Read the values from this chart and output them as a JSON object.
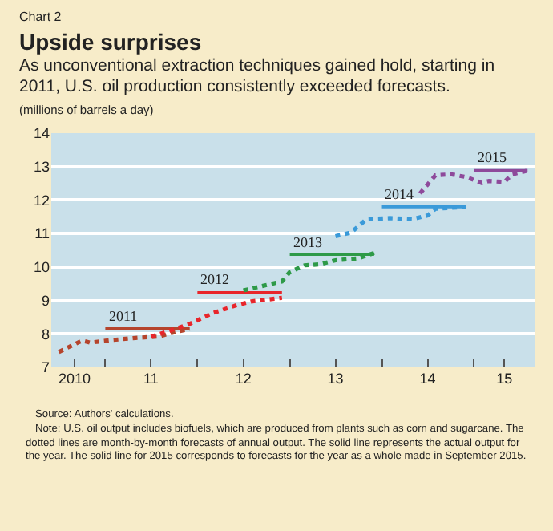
{
  "chart_data": {
    "type": "line",
    "title": "Upside surprises",
    "subtitle": "As unconventional extraction techniques gained hold, starting in 2011, U.S. oil production consistently exceeded forecasts.",
    "ylabel": "(millions of barrels a day)",
    "annotations": [
      "Chart 2",
      "Source: Authors' calculations.",
      "Note: U.S. oil output includes biofuels, which are produced from plants such as corn and sugarcane. The dotted lines are month-by-month forecasts of annual output. The solid line represents the actual output for the year. The solid line for 2015 corresponds to forecasts for the year as a whole made in September 2015."
    ],
    "series": [
      {
        "color": "#b5442c",
        "line_style": "dotted",
        "x": [
          "2010-07",
          "2010-10",
          "2010-11",
          "2011-02",
          "2011-05",
          "2011-08",
          "2011-10",
          "2011-12"
        ],
        "values": [
          7.46,
          7.8,
          7.74,
          7.82,
          7.88,
          7.92,
          8.05,
          8.15
        ]
      },
      {
        "name": "2011",
        "color": "#b5442c",
        "line_style": "solid",
        "x": [
          "2011-01",
          "2011-12"
        ],
        "values": [
          8.15,
          8.15
        ]
      },
      {
        "color": "#e8262b",
        "line_style": "dotted",
        "x": [
          "2011-07",
          "2011-09",
          "2011-12",
          "2012-03",
          "2012-06",
          "2012-08",
          "2012-12"
        ],
        "values": [
          7.92,
          8.06,
          8.3,
          8.62,
          8.85,
          8.97,
          9.08
        ]
      },
      {
        "name": "2012",
        "color": "#e8262b",
        "line_style": "solid",
        "x": [
          "2012-01",
          "2012-12"
        ],
        "values": [
          9.23,
          9.23
        ]
      },
      {
        "color": "#2e9a48",
        "line_style": "dotted",
        "x": [
          "2012-07",
          "2012-12",
          "2013-01",
          "2013-03",
          "2013-05",
          "2013-07",
          "2013-10",
          "2013-12"
        ],
        "values": [
          9.3,
          9.57,
          9.85,
          10.05,
          10.08,
          10.2,
          10.26,
          10.42
        ]
      },
      {
        "name": "2013",
        "color": "#2e9a48",
        "line_style": "solid",
        "x": [
          "2013-01",
          "2013-12"
        ],
        "values": [
          10.38,
          10.38
        ]
      },
      {
        "color": "#3a9ad9",
        "line_style": "dotted",
        "x": [
          "2013-07",
          "2013-09",
          "2013-11",
          "2014-02",
          "2014-05",
          "2014-07",
          "2014-08",
          "2014-12"
        ],
        "values": [
          10.92,
          11.03,
          11.43,
          11.46,
          11.43,
          11.54,
          11.74,
          11.8
        ]
      },
      {
        "name": "2014",
        "color": "#3a9ad9",
        "line_style": "solid",
        "x": [
          "2014-01",
          "2014-12"
        ],
        "values": [
          11.8,
          11.8
        ]
      },
      {
        "color": "#8e4a9b",
        "line_style": "dotted",
        "x": [
          "2014-06",
          "2014-08",
          "2014-10",
          "2014-12",
          "2015-02",
          "2015-03",
          "2015-05",
          "2015-06",
          "2015-08"
        ],
        "values": [
          12.2,
          12.74,
          12.77,
          12.69,
          12.51,
          12.57,
          12.54,
          12.77,
          12.88
        ]
      },
      {
        "name": "2015",
        "color": "#8e4a9b",
        "line_style": "solid",
        "x": [
          "2015-01",
          "2015-08"
        ],
        "values": [
          12.88,
          12.88
        ]
      }
    ],
    "xlim": [
      "2010-06",
      "2015-09"
    ],
    "xticks": [
      {
        "value": "2010-09",
        "label": "2010"
      },
      {
        "value": "2011-01",
        "label": null
      },
      {
        "value": "2011-07",
        "label": "11"
      },
      {
        "value": "2012-01",
        "label": null
      },
      {
        "value": "2012-07",
        "label": "12"
      },
      {
        "value": "2013-01",
        "label": null
      },
      {
        "value": "2013-07",
        "label": "13"
      },
      {
        "value": "2014-01",
        "label": null
      },
      {
        "value": "2014-07",
        "label": "14"
      },
      {
        "value": "2015-01",
        "label": null
      },
      {
        "value": "2015-05",
        "label": "15"
      }
    ],
    "ylim": [
      7,
      14
    ],
    "yticks": [
      7,
      8,
      9,
      10,
      11,
      12,
      13,
      14
    ],
    "grid": "y",
    "legend": false
  }
}
